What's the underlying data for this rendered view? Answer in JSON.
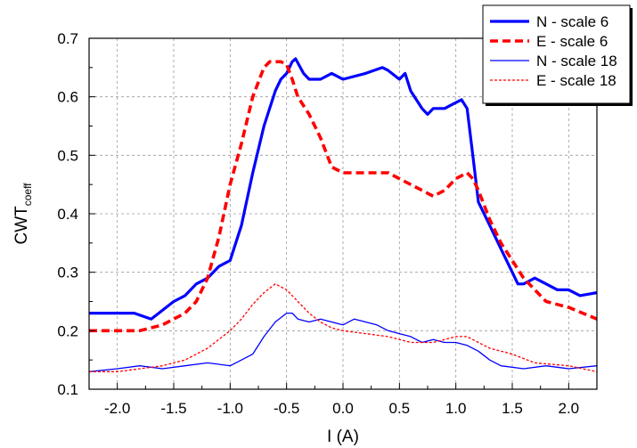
{
  "chart_data": {
    "type": "line",
    "xlabel": "I (A)",
    "ylabel": {
      "main": "CWT",
      "sub": "coeff"
    },
    "xlim": [
      -2.25,
      2.25
    ],
    "ylim": [
      0.1,
      0.7
    ],
    "xticks": [
      -2.0,
      -1.5,
      -1.0,
      -0.5,
      0.0,
      0.5,
      1.0,
      1.5,
      2.0
    ],
    "xtick_labels": [
      "-2.0",
      "-1.5",
      "-1.0",
      "-0.5",
      "0.0",
      "0.5",
      "1.0",
      "1.5",
      "2.0"
    ],
    "yticks": [
      0.1,
      0.2,
      0.3,
      0.4,
      0.5,
      0.6,
      0.7
    ],
    "ytick_labels": [
      "0.1",
      "0.2",
      "0.3",
      "0.4",
      "0.5",
      "0.6",
      "0.7"
    ],
    "grid": true,
    "legend_position": "top-right",
    "series": [
      {
        "name": "N - scale 6",
        "color": "#0000ff",
        "style": "solid-thick",
        "x": [
          -2.25,
          -2.0,
          -1.85,
          -1.7,
          -1.5,
          -1.4,
          -1.3,
          -1.2,
          -1.1,
          -1.0,
          -0.9,
          -0.8,
          -0.7,
          -0.6,
          -0.55,
          -0.5,
          -0.45,
          -0.42,
          -0.35,
          -0.3,
          -0.2,
          -0.1,
          0.0,
          0.2,
          0.35,
          0.4,
          0.5,
          0.55,
          0.6,
          0.7,
          0.75,
          0.8,
          0.9,
          1.0,
          1.05,
          1.1,
          1.15,
          1.2,
          1.3,
          1.4,
          1.5,
          1.55,
          1.6,
          1.7,
          1.8,
          1.9,
          2.0,
          2.1,
          2.25
        ],
        "y": [
          0.23,
          0.23,
          0.23,
          0.22,
          0.25,
          0.26,
          0.28,
          0.29,
          0.31,
          0.32,
          0.38,
          0.47,
          0.55,
          0.61,
          0.63,
          0.64,
          0.66,
          0.665,
          0.64,
          0.63,
          0.63,
          0.64,
          0.63,
          0.64,
          0.65,
          0.645,
          0.63,
          0.64,
          0.61,
          0.58,
          0.57,
          0.58,
          0.58,
          0.59,
          0.595,
          0.58,
          0.5,
          0.42,
          0.38,
          0.34,
          0.3,
          0.28,
          0.28,
          0.29,
          0.28,
          0.27,
          0.27,
          0.26,
          0.265
        ]
      },
      {
        "name": "E - scale 6",
        "color": "#ff0000",
        "style": "dashed-thick",
        "x": [
          -2.25,
          -2.0,
          -1.8,
          -1.6,
          -1.4,
          -1.3,
          -1.2,
          -1.1,
          -1.0,
          -0.9,
          -0.8,
          -0.7,
          -0.65,
          -0.55,
          -0.5,
          -0.45,
          -0.4,
          -0.3,
          -0.2,
          -0.1,
          0.0,
          0.2,
          0.4,
          0.5,
          0.6,
          0.7,
          0.8,
          0.9,
          1.0,
          1.1,
          1.15,
          1.2,
          1.3,
          1.4,
          1.5,
          1.6,
          1.7,
          1.8,
          2.0,
          2.25
        ],
        "y": [
          0.2,
          0.2,
          0.2,
          0.21,
          0.23,
          0.25,
          0.29,
          0.36,
          0.45,
          0.52,
          0.6,
          0.65,
          0.66,
          0.66,
          0.655,
          0.63,
          0.6,
          0.57,
          0.53,
          0.48,
          0.47,
          0.47,
          0.47,
          0.46,
          0.45,
          0.44,
          0.43,
          0.44,
          0.46,
          0.47,
          0.46,
          0.44,
          0.39,
          0.35,
          0.32,
          0.29,
          0.27,
          0.25,
          0.24,
          0.22
        ]
      },
      {
        "name": "N - scale 18",
        "color": "#0000ff",
        "style": "solid-thin",
        "x": [
          -2.25,
          -2.0,
          -1.8,
          -1.6,
          -1.4,
          -1.2,
          -1.0,
          -0.9,
          -0.8,
          -0.7,
          -0.6,
          -0.5,
          -0.45,
          -0.4,
          -0.3,
          -0.2,
          -0.1,
          0.0,
          0.1,
          0.2,
          0.3,
          0.4,
          0.5,
          0.6,
          0.7,
          0.8,
          0.9,
          1.0,
          1.1,
          1.2,
          1.3,
          1.4,
          1.6,
          1.8,
          2.0,
          2.25
        ],
        "y": [
          0.13,
          0.135,
          0.14,
          0.135,
          0.14,
          0.145,
          0.14,
          0.15,
          0.16,
          0.19,
          0.215,
          0.23,
          0.23,
          0.22,
          0.215,
          0.22,
          0.215,
          0.21,
          0.22,
          0.215,
          0.21,
          0.2,
          0.195,
          0.19,
          0.18,
          0.185,
          0.18,
          0.18,
          0.175,
          0.165,
          0.15,
          0.14,
          0.135,
          0.14,
          0.135,
          0.14
        ]
      },
      {
        "name": "E - scale 18",
        "color": "#ff0000",
        "style": "dashed-thin",
        "x": [
          -2.25,
          -2.0,
          -1.8,
          -1.6,
          -1.4,
          -1.2,
          -1.0,
          -0.9,
          -0.8,
          -0.7,
          -0.6,
          -0.5,
          -0.4,
          -0.3,
          -0.2,
          -0.1,
          0.0,
          0.2,
          0.4,
          0.6,
          0.8,
          1.0,
          1.1,
          1.2,
          1.3,
          1.5,
          1.7,
          2.0,
          2.25
        ],
        "y": [
          0.13,
          0.13,
          0.135,
          0.14,
          0.15,
          0.17,
          0.2,
          0.22,
          0.245,
          0.265,
          0.28,
          0.27,
          0.25,
          0.23,
          0.215,
          0.205,
          0.2,
          0.195,
          0.19,
          0.18,
          0.18,
          0.19,
          0.19,
          0.18,
          0.17,
          0.16,
          0.145,
          0.14,
          0.13
        ]
      }
    ]
  }
}
